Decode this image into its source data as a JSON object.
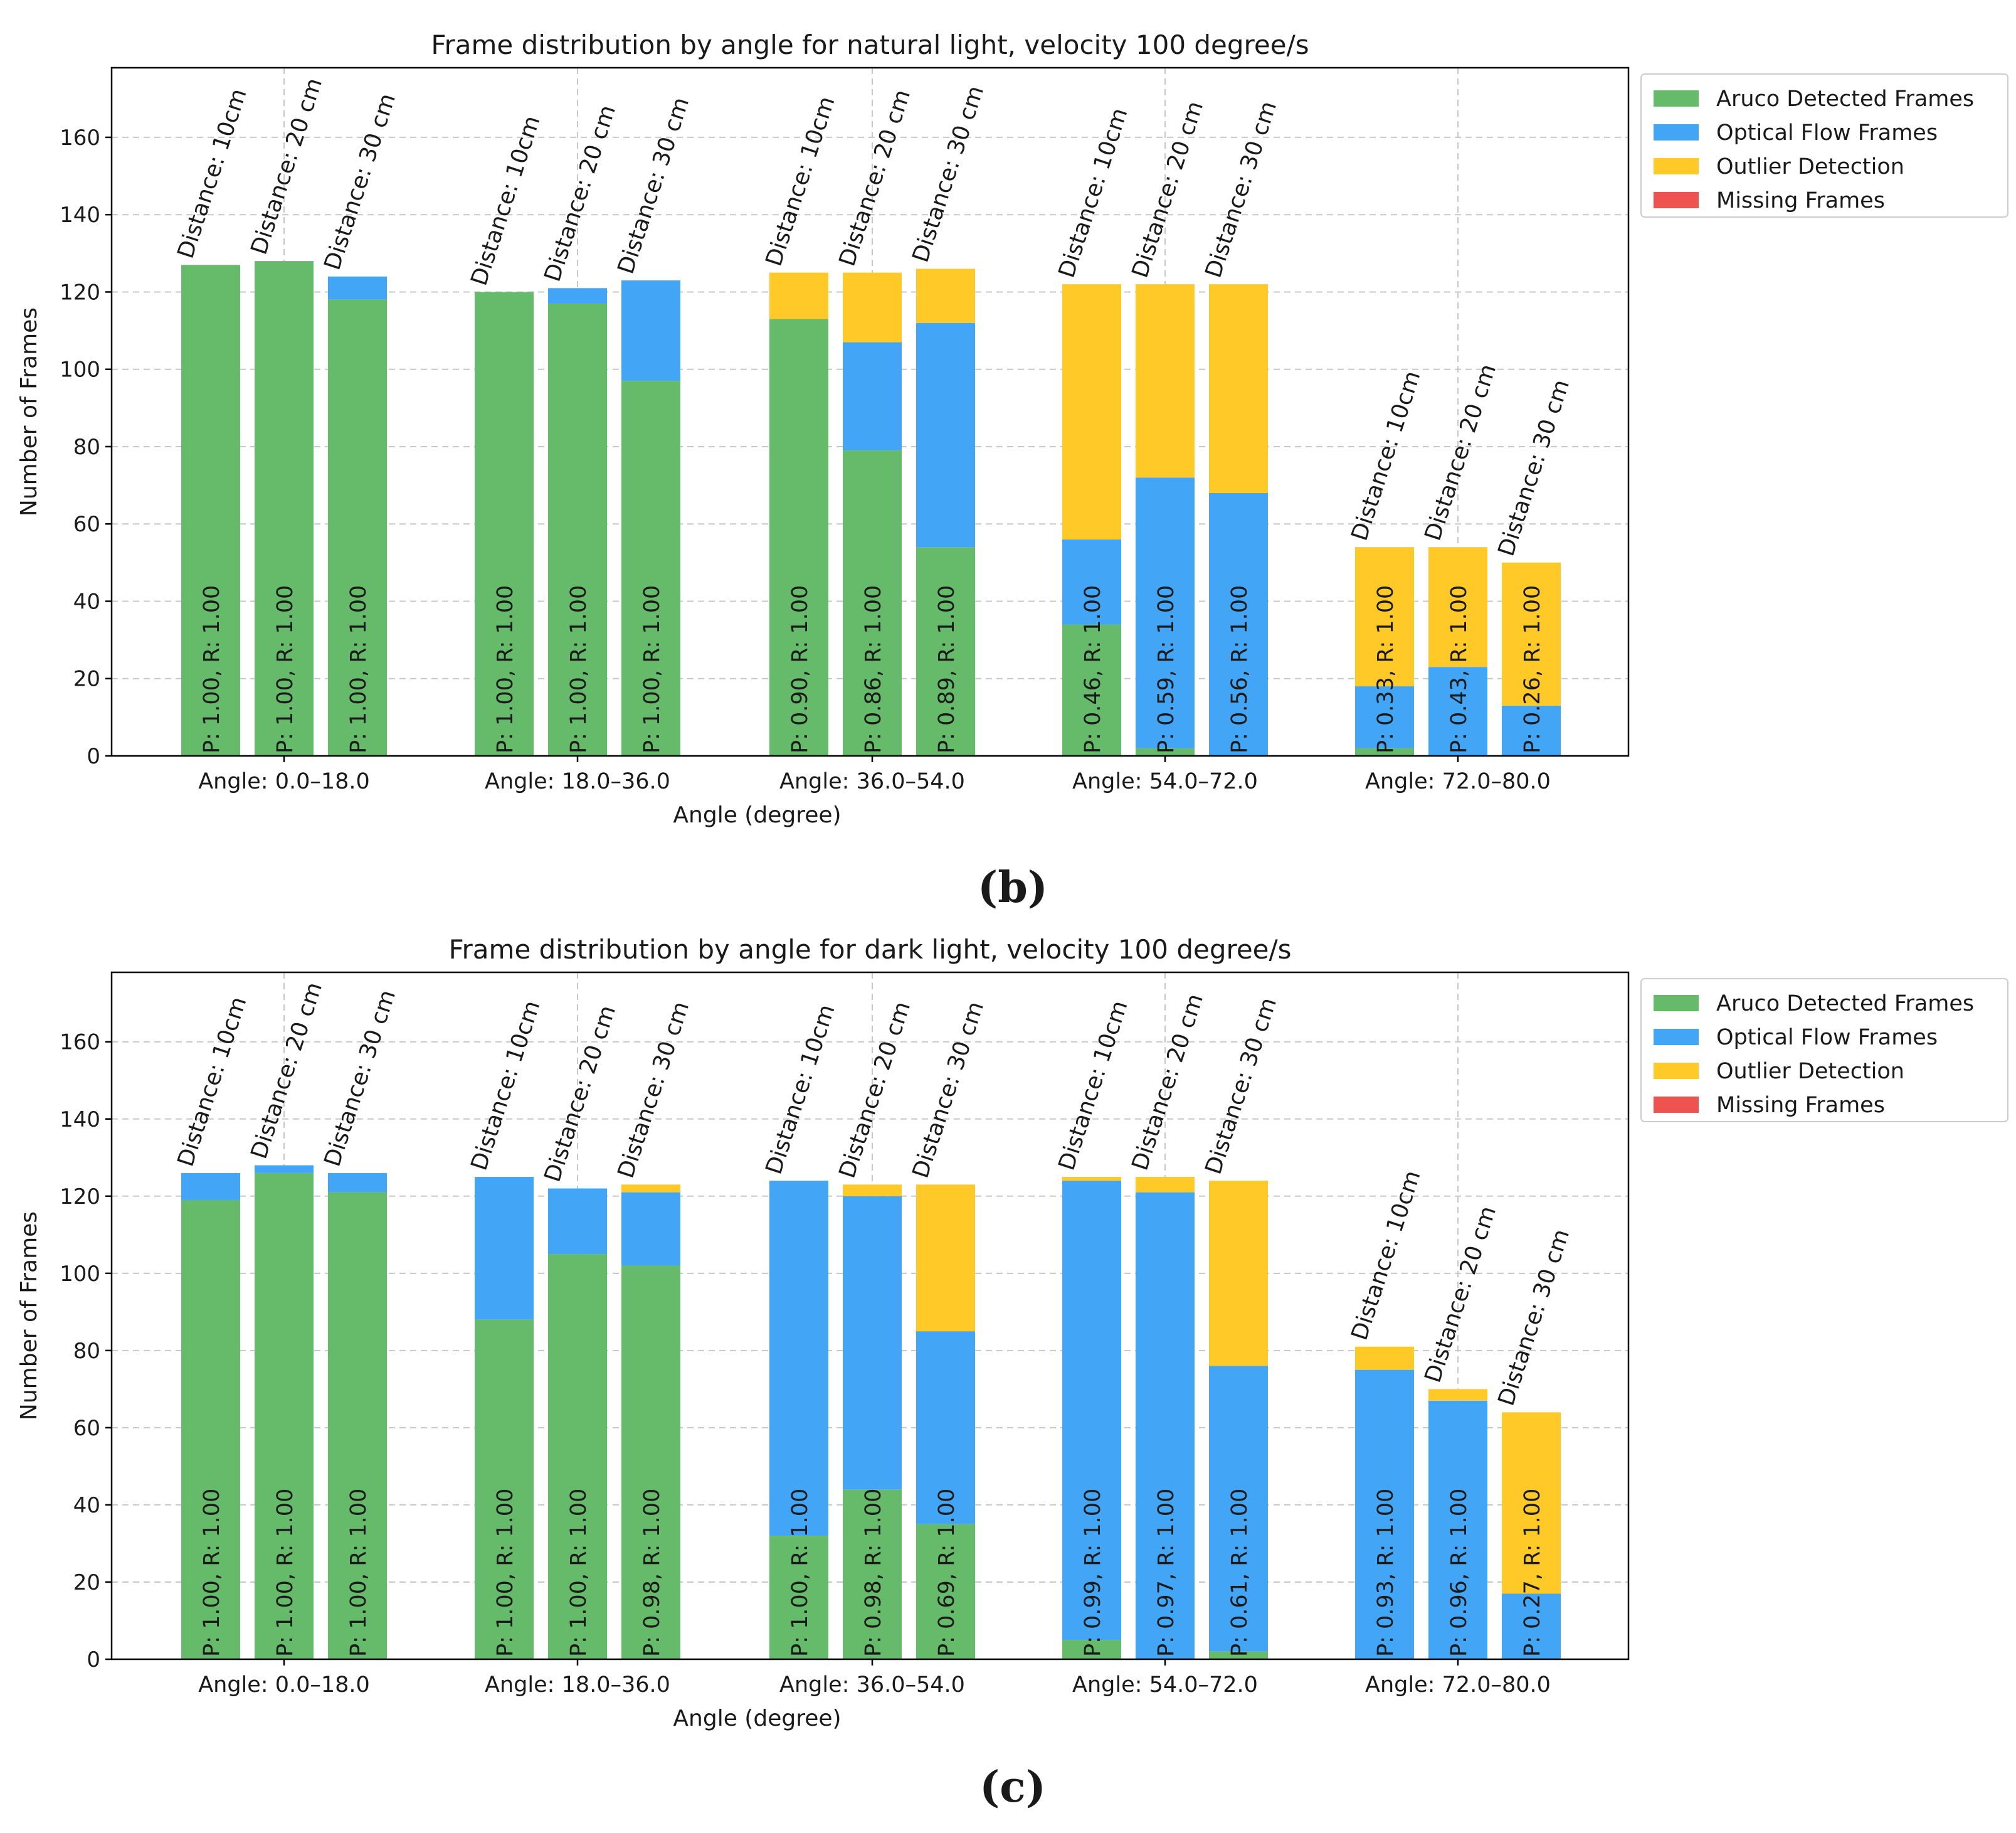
{
  "chart_data": [
    {
      "type": "bar",
      "stacked": true,
      "panel_caption": "(b)",
      "title": "Frame distribution by angle for natural light, velocity 100 degree/s",
      "xlabel": "Angle (degree)",
      "ylabel": "Number of Frames",
      "ylim": [
        0,
        178
      ],
      "yticks": [
        0,
        20,
        40,
        60,
        80,
        100,
        120,
        140,
        160
      ],
      "grid": true,
      "legend_position": "upper right outside",
      "categories": [
        "Angle: 0.0–18.0",
        "Angle: 18.0–36.0",
        "Angle: 36.0–54.0",
        "Angle: 54.0–72.0",
        "Angle: 72.0–80.0"
      ],
      "bar_labels": [
        [
          "Distance: 10cm",
          "Distance: 20 cm",
          "Distance: 30 cm"
        ],
        [
          "Distance: 10cm",
          "Distance: 20 cm",
          "Distance: 30 cm"
        ],
        [
          "Distance: 10cm",
          "Distance: 20 cm",
          "Distance: 30 cm"
        ],
        [
          "Distance: 10cm",
          "Distance: 20 cm",
          "Distance: 30 cm"
        ],
        [
          "Distance: 10cm",
          "Distance: 20 cm",
          "Distance: 30 cm"
        ]
      ],
      "pr_labels": [
        [
          "P: 1.00, R: 1.00",
          "P: 1.00, R: 1.00",
          "P: 1.00, R: 1.00"
        ],
        [
          "P: 1.00, R: 1.00",
          "P: 1.00, R: 1.00",
          "P: 1.00, R: 1.00"
        ],
        [
          "P: 0.90, R: 1.00",
          "P: 0.86, R: 1.00",
          "P: 0.89, R: 1.00"
        ],
        [
          "P: 0.46, R: 1.00",
          "P: 0.59, R: 1.00",
          "P: 0.56, R: 1.00"
        ],
        [
          "P: 0.33, R: 1.00",
          "P: 0.43, R: 1.00",
          "P: 0.26, R: 1.00"
        ]
      ],
      "series": [
        {
          "name": "Aruco Detected Frames",
          "color": "#66bb6a",
          "values": [
            [
              127,
              128,
              118
            ],
            [
              120,
              117,
              97
            ],
            [
              113,
              79,
              54
            ],
            [
              34,
              2,
              0
            ],
            [
              2,
              0,
              0
            ]
          ]
        },
        {
          "name": "Optical Flow Frames",
          "color": "#42a5f5",
          "values": [
            [
              0,
              0,
              6
            ],
            [
              0,
              4,
              26
            ],
            [
              0,
              28,
              58
            ],
            [
              22,
              70,
              68
            ],
            [
              16,
              23,
              13
            ]
          ]
        },
        {
          "name": "Outlier Detection",
          "color": "#ffca28",
          "values": [
            [
              0,
              0,
              0
            ],
            [
              0,
              0,
              0
            ],
            [
              12,
              18,
              14
            ],
            [
              66,
              50,
              54
            ],
            [
              36,
              31,
              37
            ]
          ]
        },
        {
          "name": "Missing Frames",
          "color": "#ef5350",
          "values": [
            [
              0,
              0,
              0
            ],
            [
              0,
              0,
              0
            ],
            [
              0,
              0,
              0
            ],
            [
              0,
              0,
              0
            ],
            [
              0,
              0,
              0
            ]
          ]
        }
      ]
    },
    {
      "type": "bar",
      "stacked": true,
      "panel_caption": "(c)",
      "title": "Frame distribution by angle for dark light, velocity 100 degree/s",
      "xlabel": "Angle (degree)",
      "ylabel": "Number of Frames",
      "ylim": [
        0,
        178
      ],
      "yticks": [
        0,
        20,
        40,
        60,
        80,
        100,
        120,
        140,
        160
      ],
      "grid": true,
      "legend_position": "upper right outside",
      "categories": [
        "Angle: 0.0–18.0",
        "Angle: 18.0–36.0",
        "Angle: 36.0–54.0",
        "Angle: 54.0–72.0",
        "Angle: 72.0–80.0"
      ],
      "bar_labels": [
        [
          "Distance: 10cm",
          "Distance: 20 cm",
          "Distance: 30 cm"
        ],
        [
          "Distance: 10cm",
          "Distance: 20 cm",
          "Distance: 30 cm"
        ],
        [
          "Distance: 10cm",
          "Distance: 20 cm",
          "Distance: 30 cm"
        ],
        [
          "Distance: 10cm",
          "Distance: 20 cm",
          "Distance: 30 cm"
        ],
        [
          "Distance: 10cm",
          "Distance: 20 cm",
          "Distance: 30 cm"
        ]
      ],
      "pr_labels": [
        [
          "P: 1.00, R: 1.00",
          "P: 1.00, R: 1.00",
          "P: 1.00, R: 1.00"
        ],
        [
          "P: 1.00, R: 1.00",
          "P: 1.00, R: 1.00",
          "P: 0.98, R: 1.00"
        ],
        [
          "P: 1.00, R: 1.00",
          "P: 0.98, R: 1.00",
          "P: 0.69, R: 1.00"
        ],
        [
          "P: 0.99, R: 1.00",
          "P: 0.97, R: 1.00",
          "P: 0.61, R: 1.00"
        ],
        [
          "P: 0.93, R: 1.00",
          "P: 0.96, R: 1.00",
          "P: 0.27, R: 1.00"
        ]
      ],
      "series": [
        {
          "name": "Aruco Detected Frames",
          "color": "#66bb6a",
          "values": [
            [
              119,
              126,
              121
            ],
            [
              88,
              105,
              102
            ],
            [
              32,
              44,
              35
            ],
            [
              5,
              0,
              2
            ],
            [
              0,
              0,
              0
            ]
          ]
        },
        {
          "name": "Optical Flow Frames",
          "color": "#42a5f5",
          "values": [
            [
              7,
              2,
              5
            ],
            [
              37,
              17,
              19
            ],
            [
              92,
              76,
              50
            ],
            [
              119,
              121,
              74
            ],
            [
              75,
              67,
              17
            ]
          ]
        },
        {
          "name": "Outlier Detection",
          "color": "#ffca28",
          "values": [
            [
              0,
              0,
              0
            ],
            [
              0,
              0,
              2
            ],
            [
              0,
              3,
              38
            ],
            [
              1,
              4,
              48
            ],
            [
              6,
              3,
              47
            ]
          ]
        },
        {
          "name": "Missing Frames",
          "color": "#ef5350",
          "values": [
            [
              0,
              0,
              0
            ],
            [
              0,
              0,
              0
            ],
            [
              0,
              0,
              0
            ],
            [
              0,
              0,
              0
            ],
            [
              0,
              0,
              0
            ]
          ]
        }
      ]
    }
  ]
}
